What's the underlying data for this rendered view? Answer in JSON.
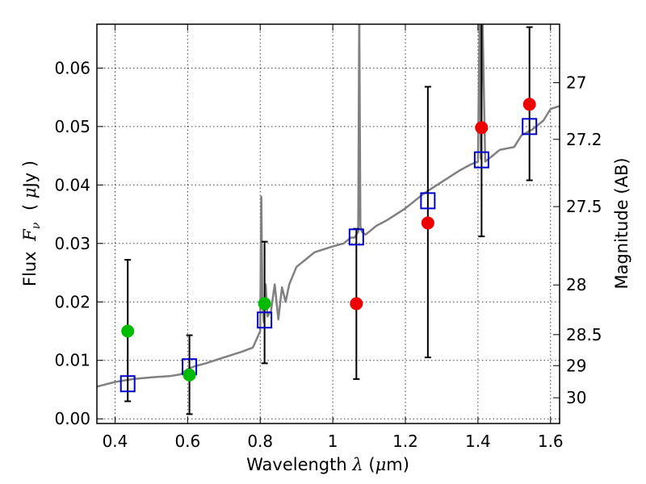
{
  "chart_data": {
    "type": "scatter",
    "xlabel_prefix": "Wavelength",
    "xlabel_symbol": "λ",
    "xlabel_unit_open": "(",
    "xlabel_unit_mu": "μ",
    "xlabel_unit_rest": "m)",
    "ylabel_prefix": "Flux",
    "ylabel_symbol": "F",
    "ylabel_sub": "ν",
    "ylabel_unit_open": "(",
    "ylabel_unit_mu": "μ",
    "ylabel_unit_rest": "Jy )",
    "y2label": "Magnitude (AB)",
    "xlim": [
      0.35,
      1.625
    ],
    "ylim": [
      -0.0008,
      0.0675
    ],
    "grid": true,
    "xticks": [
      {
        "value": 0.4,
        "label": "0.4"
      },
      {
        "value": 0.6,
        "label": "0.6"
      },
      {
        "value": 0.8,
        "label": "0.8"
      },
      {
        "value": 1.0,
        "label": "1"
      },
      {
        "value": 1.2,
        "label": "1.2"
      },
      {
        "value": 1.4,
        "label": "1.4"
      },
      {
        "value": 1.6,
        "label": "1.6"
      }
    ],
    "yticks": [
      {
        "value": 0.0,
        "label": "0.00"
      },
      {
        "value": 0.01,
        "label": "0.01"
      },
      {
        "value": 0.02,
        "label": "0.02"
      },
      {
        "value": 0.03,
        "label": "0.03"
      },
      {
        "value": 0.04,
        "label": "0.04"
      },
      {
        "value": 0.05,
        "label": "0.05"
      },
      {
        "value": 0.06,
        "label": "0.06"
      }
    ],
    "y2ticks": [
      {
        "label": "27",
        "flux": 0.0575
      },
      {
        "label": "27.2",
        "flux": 0.0478
      },
      {
        "label": "27.5",
        "flux": 0.0363
      },
      {
        "label": "28",
        "flux": 0.0229
      },
      {
        "label": "28.5",
        "flux": 0.0144
      },
      {
        "label": "29",
        "flux": 0.0091
      },
      {
        "label": "30",
        "flux": 0.0036
      }
    ],
    "model_spectrum": {
      "color": "#808080",
      "x": [
        0.35,
        0.4,
        0.45,
        0.5,
        0.55,
        0.58,
        0.6,
        0.62,
        0.65,
        0.7,
        0.75,
        0.78,
        0.8,
        0.803,
        0.806,
        0.81,
        0.815,
        0.82,
        0.83,
        0.84,
        0.85,
        0.86,
        0.87,
        0.88,
        0.9,
        0.95,
        1.0,
        1.03,
        1.05,
        1.06,
        1.07,
        1.073,
        1.076,
        1.08,
        1.09,
        1.1,
        1.12,
        1.15,
        1.2,
        1.25,
        1.3,
        1.35,
        1.38,
        1.4,
        1.405,
        1.408,
        1.412,
        1.42,
        1.44,
        1.46,
        1.5,
        1.52,
        1.55,
        1.58,
        1.6,
        1.625
      ],
      "y": [
        0.0055,
        0.0063,
        0.0068,
        0.0071,
        0.0073,
        0.0076,
        0.0085,
        0.009,
        0.0095,
        0.0105,
        0.0115,
        0.0122,
        0.015,
        0.038,
        0.02,
        0.0165,
        0.023,
        0.0175,
        0.0185,
        0.023,
        0.017,
        0.0225,
        0.02,
        0.023,
        0.026,
        0.0285,
        0.0295,
        0.03,
        0.031,
        0.031,
        0.032,
        0.07,
        0.033,
        0.032,
        0.0315,
        0.032,
        0.033,
        0.034,
        0.036,
        0.0385,
        0.0405,
        0.0425,
        0.0435,
        0.044,
        0.07,
        0.0445,
        0.07,
        0.044,
        0.045,
        0.046,
        0.0465,
        0.0485,
        0.0495,
        0.051,
        0.053,
        0.0535
      ]
    },
    "series": [
      {
        "marker": "open-square",
        "color": "#0000cc",
        "x": [
          0.435,
          0.605,
          0.812,
          1.065,
          1.262,
          1.41,
          1.542
        ],
        "y": [
          0.006,
          0.0089,
          0.0169,
          0.0311,
          0.0373,
          0.0443,
          0.05
        ]
      },
      {
        "marker": "filled-circle",
        "color": "#00bb00",
        "x": [
          0.435,
          0.605,
          0.812
        ],
        "y": [
          0.015,
          0.0075,
          0.0197
        ],
        "err_low": [
          0.003,
          0.0008,
          0.0095
        ],
        "err_high": [
          0.0272,
          0.0143,
          0.0303
        ]
      },
      {
        "marker": "filled-circle",
        "color": "#ee0000",
        "x": [
          1.065,
          1.262,
          1.41,
          1.542
        ],
        "y": [
          0.0197,
          0.0335,
          0.0498,
          0.0538
        ],
        "err_low": [
          0.0068,
          0.0105,
          0.0312,
          0.0408
        ],
        "err_high": [
          0.0325,
          0.0568,
          0.07,
          0.067
        ]
      }
    ]
  }
}
